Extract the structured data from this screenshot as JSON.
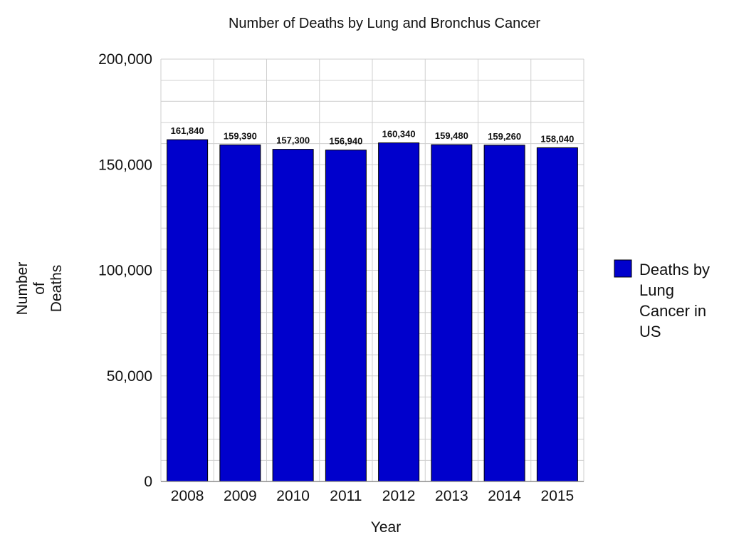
{
  "chart_data": {
    "type": "bar",
    "title": "Number of Deaths by Lung and Bronchus Cancer",
    "xlabel": "Year",
    "ylabel": [
      "Number",
      "of",
      "Deaths"
    ],
    "categories": [
      "2008",
      "2009",
      "2010",
      "2011",
      "2012",
      "2013",
      "2014",
      "2015"
    ],
    "series": [
      {
        "name": "Deaths by Lung Cancer in US",
        "legend_lines": [
          "Deaths by",
          "Lung",
          "Cancer in",
          "US"
        ],
        "color": "#0000cc",
        "values": [
          161840,
          159390,
          157300,
          156940,
          160340,
          159480,
          159260,
          158040
        ],
        "labels": [
          "161,840",
          "159,390",
          "157,300",
          "156,940",
          "160,340",
          "159,480",
          "159,260",
          "158,040"
        ]
      }
    ],
    "ylim": [
      0,
      200000
    ],
    "yticks": [
      0,
      50000,
      100000,
      150000,
      200000
    ],
    "ytick_labels": [
      "0",
      "50,000",
      "100,000",
      "150,000",
      "200,000"
    ],
    "grid": true,
    "legend_position": "right"
  }
}
